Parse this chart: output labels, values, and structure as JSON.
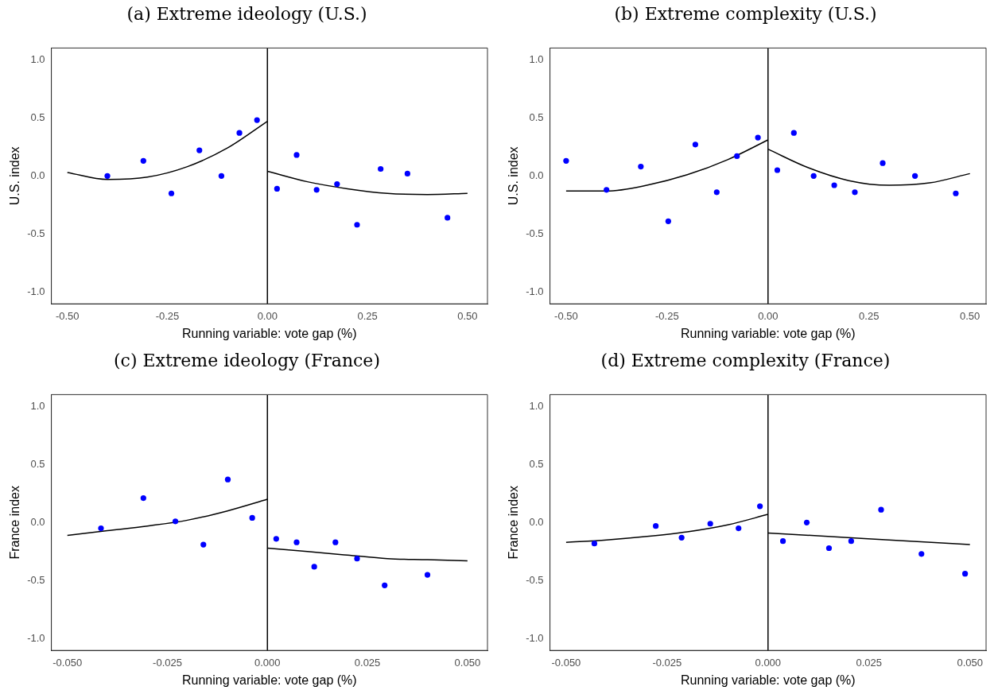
{
  "chart_data": [
    {
      "type": "scatter",
      "title": "(a) Extreme ideology (U.S.)",
      "xlabel": "Running variable: vote gap (%)",
      "ylabel": "U.S. index",
      "xlim": [
        -0.54,
        0.55
      ],
      "ylim": [
        -1.1,
        1.1
      ],
      "xticks": [
        {
          "value": -0.5,
          "label": "-0.50"
        },
        {
          "value": -0.25,
          "label": "-0.25"
        },
        {
          "value": 0,
          "label": "0.00"
        },
        {
          "value": 0.25,
          "label": "0.25"
        },
        {
          "value": 0.5,
          "label": "0.50"
        }
      ],
      "yticks": [
        {
          "value": -1,
          "label": "-1.0"
        },
        {
          "value": -0.5,
          "label": "-0.5"
        },
        {
          "value": 0,
          "label": "0.0"
        },
        {
          "value": 0.5,
          "label": "0.5"
        },
        {
          "value": 1,
          "label": "1.0"
        }
      ],
      "grid": false,
      "legend": false,
      "ref_lines": [
        {
          "axis": "x",
          "value": 0,
          "color": "#000000"
        }
      ],
      "series": [
        {
          "type": "scatter",
          "marker": "circle",
          "color": "#0000ff",
          "x": [
            -0.4,
            -0.31,
            -0.24,
            -0.17,
            -0.115,
            -0.07,
            -0.026,
            0.024,
            0.073,
            0.123,
            0.174,
            0.224,
            0.283,
            0.35,
            0.45
          ],
          "values": [
            0.0,
            0.13,
            -0.15,
            0.22,
            0.0,
            0.37,
            0.48,
            -0.11,
            0.18,
            -0.12,
            -0.07,
            -0.42,
            0.06,
            0.02,
            -0.36
          ]
        },
        {
          "type": "line",
          "marker": "none",
          "color": "#000000",
          "line_style": "solid",
          "x": [
            -0.5,
            -0.4,
            -0.3,
            -0.2,
            -0.1,
            0
          ],
          "values": [
            0.03,
            -0.03,
            -0.01,
            0.08,
            0.24,
            0.47
          ]
        },
        {
          "type": "line",
          "marker": "none",
          "color": "#000000",
          "line_style": "solid",
          "x": [
            0,
            0.1,
            0.2,
            0.3,
            0.4,
            0.5
          ],
          "values": [
            0.04,
            -0.05,
            -0.11,
            -0.15,
            -0.16,
            -0.15
          ]
        }
      ]
    },
    {
      "type": "scatter",
      "title": "(b) Extreme complexity (U.S.)",
      "xlabel": "Running variable: vote gap (%)",
      "ylabel": "U.S. index",
      "xlim": [
        -0.54,
        0.54
      ],
      "ylim": [
        -1.1,
        1.1
      ],
      "xticks": [
        {
          "value": -0.5,
          "label": "-0.50"
        },
        {
          "value": -0.25,
          "label": "-0.25"
        },
        {
          "value": 0,
          "label": "0.00"
        },
        {
          "value": 0.25,
          "label": "0.25"
        },
        {
          "value": 0.5,
          "label": "0.50"
        }
      ],
      "yticks": [
        {
          "value": -1,
          "label": "-1.0"
        },
        {
          "value": -0.5,
          "label": "-0.5"
        },
        {
          "value": 0,
          "label": "0.0"
        },
        {
          "value": 0.5,
          "label": "0.5"
        },
        {
          "value": 1,
          "label": "1.0"
        }
      ],
      "grid": false,
      "legend": false,
      "ref_lines": [
        {
          "axis": "x",
          "value": 0,
          "color": "#000000"
        }
      ],
      "series": [
        {
          "type": "scatter",
          "marker": "circle",
          "color": "#0000ff",
          "x": [
            -0.5,
            -0.4,
            -0.315,
            -0.247,
            -0.18,
            -0.127,
            -0.077,
            -0.025,
            0.023,
            0.064,
            0.113,
            0.164,
            0.215,
            0.284,
            0.364,
            0.465
          ],
          "values": [
            0.13,
            -0.12,
            0.08,
            -0.39,
            0.27,
            -0.14,
            0.17,
            0.33,
            0.05,
            0.37,
            0.0,
            -0.08,
            -0.14,
            0.11,
            0.0,
            -0.15
          ]
        },
        {
          "type": "line",
          "marker": "none",
          "color": "#000000",
          "line_style": "solid",
          "x": [
            -0.5,
            -0.4,
            -0.3,
            -0.2,
            -0.1,
            0
          ],
          "values": [
            -0.13,
            -0.13,
            -0.08,
            0.01,
            0.14,
            0.31
          ]
        },
        {
          "type": "line",
          "marker": "none",
          "color": "#000000",
          "line_style": "solid",
          "x": [
            0,
            0.1,
            0.2,
            0.3,
            0.4,
            0.5
          ],
          "values": [
            0.23,
            0.07,
            -0.04,
            -0.08,
            -0.06,
            0.02
          ]
        }
      ]
    },
    {
      "type": "scatter",
      "title": "(c) Extreme ideology (France)",
      "xlabel": "Running variable: vote gap (%)",
      "ylabel": "France index",
      "xlim": [
        -0.054,
        0.055
      ],
      "ylim": [
        -1.1,
        1.1
      ],
      "xticks": [
        {
          "value": -0.05,
          "label": "-0.050"
        },
        {
          "value": -0.025,
          "label": "-0.025"
        },
        {
          "value": 0,
          "label": "0.000"
        },
        {
          "value": 0.025,
          "label": "0.025"
        },
        {
          "value": 0.05,
          "label": "0.050"
        }
      ],
      "yticks": [
        {
          "value": -1,
          "label": "-1.0"
        },
        {
          "value": -0.5,
          "label": "-0.5"
        },
        {
          "value": 0,
          "label": "0.0"
        },
        {
          "value": 0.5,
          "label": "0.5"
        },
        {
          "value": 1,
          "label": "1.0"
        }
      ],
      "grid": false,
      "legend": false,
      "ref_lines": [
        {
          "axis": "x",
          "value": 0,
          "color": "#000000"
        }
      ],
      "series": [
        {
          "type": "scatter",
          "marker": "circle",
          "color": "#0000ff",
          "x": [
            -0.0416,
            -0.031,
            -0.023,
            -0.016,
            -0.0099,
            -0.0038,
            0.0022,
            0.0073,
            0.0117,
            0.017,
            0.0224,
            0.0293,
            0.04
          ],
          "values": [
            -0.05,
            0.21,
            0.01,
            -0.19,
            0.37,
            0.04,
            -0.14,
            -0.17,
            -0.38,
            -0.17,
            -0.31,
            -0.54,
            -0.45
          ]
        },
        {
          "type": "line",
          "marker": "none",
          "color": "#000000",
          "line_style": "solid",
          "x": [
            -0.05,
            -0.04,
            -0.03,
            -0.02,
            -0.01,
            0
          ],
          "values": [
            -0.11,
            -0.07,
            -0.03,
            0.02,
            0.1,
            0.2
          ]
        },
        {
          "type": "line",
          "marker": "none",
          "color": "#000000",
          "line_style": "solid",
          "x": [
            0,
            0.01,
            0.02,
            0.03,
            0.04,
            0.05
          ],
          "values": [
            -0.22,
            -0.25,
            -0.28,
            -0.31,
            -0.32,
            -0.33
          ]
        }
      ]
    },
    {
      "type": "scatter",
      "title": "(d) Extreme complexity (France)",
      "xlabel": "Running variable: vote gap (%)",
      "ylabel": "France index",
      "xlim": [
        -0.054,
        0.054
      ],
      "ylim": [
        -1.1,
        1.1
      ],
      "xticks": [
        {
          "value": -0.05,
          "label": "-0.050"
        },
        {
          "value": -0.025,
          "label": "-0.025"
        },
        {
          "value": 0,
          "label": "0.000"
        },
        {
          "value": 0.025,
          "label": "0.025"
        },
        {
          "value": 0.05,
          "label": "0.050"
        }
      ],
      "yticks": [
        {
          "value": -1,
          "label": "-1.0"
        },
        {
          "value": -0.5,
          "label": "-0.5"
        },
        {
          "value": 0,
          "label": "0.0"
        },
        {
          "value": 0.5,
          "label": "0.5"
        },
        {
          "value": 1,
          "label": "1.0"
        }
      ],
      "grid": false,
      "legend": false,
      "ref_lines": [
        {
          "axis": "x",
          "value": 0,
          "color": "#000000"
        }
      ],
      "series": [
        {
          "type": "scatter",
          "marker": "circle",
          "color": "#0000ff",
          "x": [
            -0.043,
            -0.0278,
            -0.0214,
            -0.0143,
            -0.0073,
            -0.002,
            0.0037,
            0.0096,
            0.0151,
            0.0206,
            0.028,
            0.038,
            0.0488
          ],
          "values": [
            -0.18,
            -0.03,
            -0.13,
            -0.01,
            -0.05,
            0.14,
            -0.16,
            0.0,
            -0.22,
            -0.16,
            0.11,
            -0.27,
            -0.44
          ]
        },
        {
          "type": "line",
          "marker": "none",
          "color": "#000000",
          "line_style": "solid",
          "x": [
            -0.05,
            -0.04,
            -0.03,
            -0.02,
            -0.01,
            0
          ],
          "values": [
            -0.17,
            -0.15,
            -0.12,
            -0.08,
            -0.02,
            0.07
          ]
        },
        {
          "type": "line",
          "marker": "none",
          "color": "#000000",
          "line_style": "solid",
          "x": [
            0,
            0.05
          ],
          "values": [
            -0.09,
            -0.19
          ]
        }
      ]
    }
  ]
}
